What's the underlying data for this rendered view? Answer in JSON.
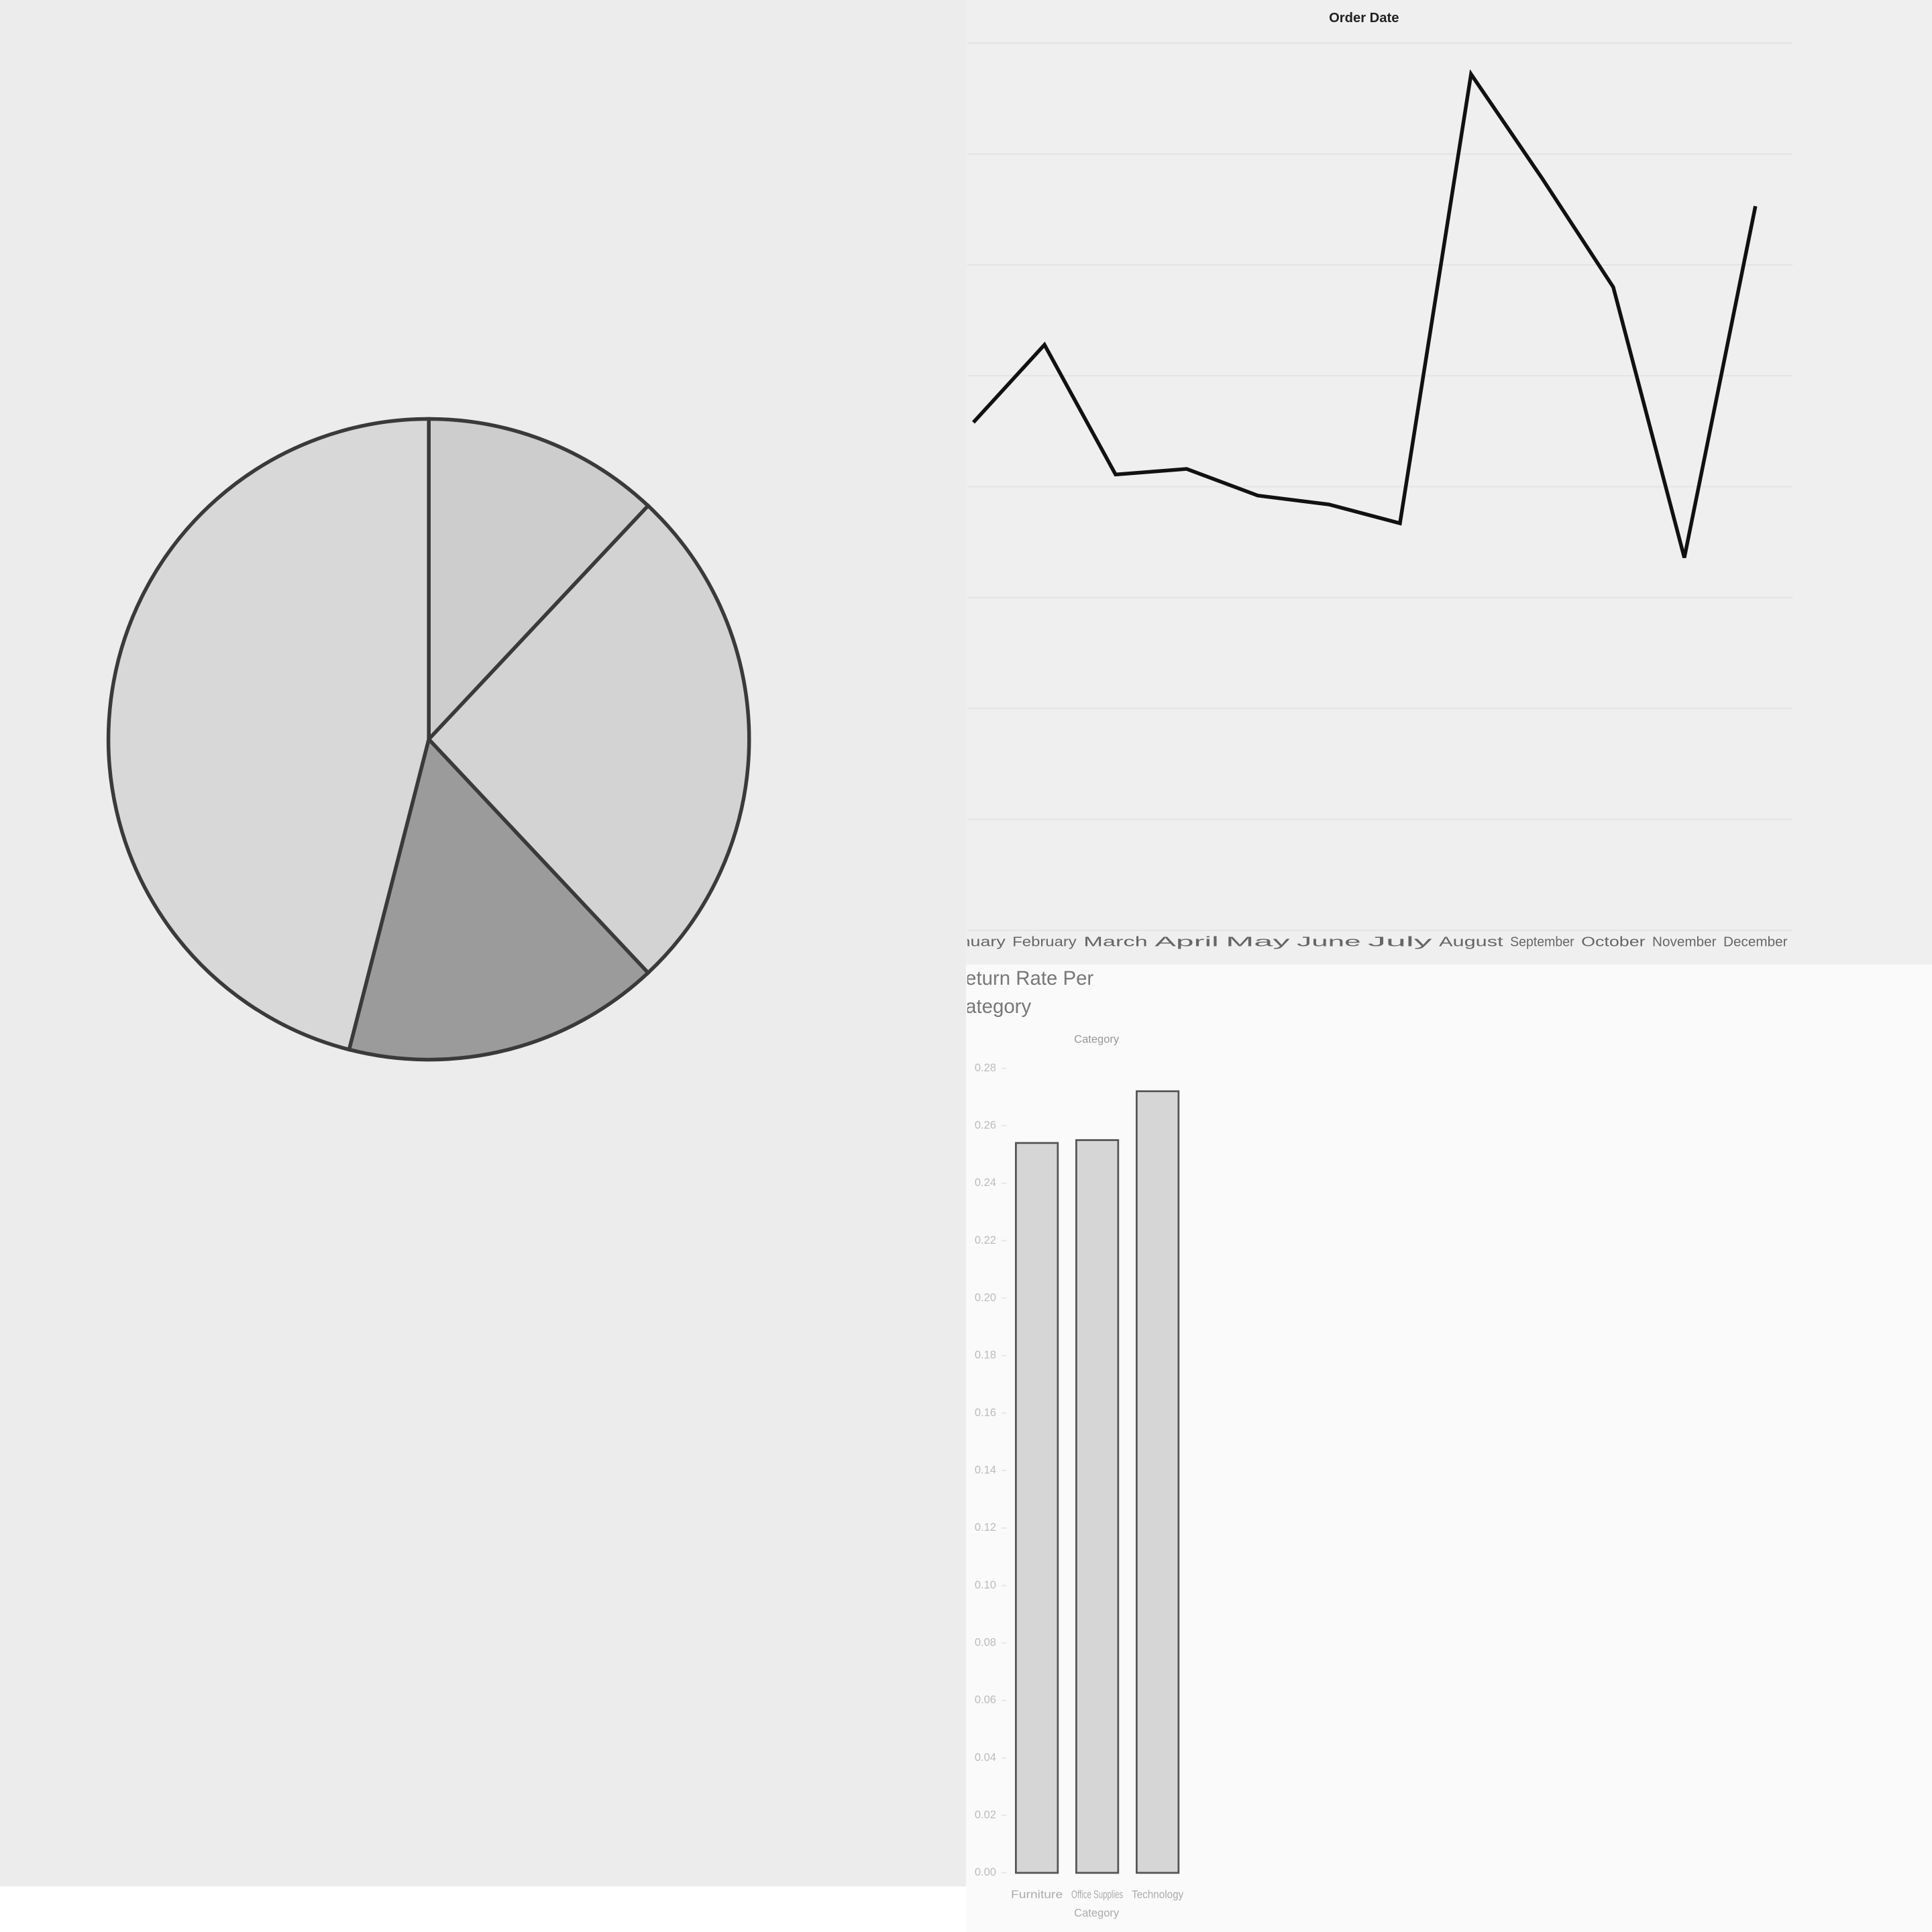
{
  "chart_data": [
    {
      "type": "pie",
      "values": [
        12,
        26,
        16,
        46
      ],
      "colors": [
        "#cdcdcd",
        "#d3d3d3",
        "#9b9b9b",
        "#d8d8d8"
      ]
    },
    {
      "type": "line",
      "title": "Order Date",
      "categories": [
        "January",
        "February",
        "March",
        "April",
        "May",
        "June",
        "July",
        "August",
        "September",
        "October",
        "November",
        "December"
      ],
      "values": [
        4.58,
        5.28,
        4.11,
        4.16,
        3.92,
        3.84,
        3.67,
        7.72,
        6.78,
        5.8,
        3.36,
        6.53
      ],
      "color": "#111111",
      "ylim": [
        0,
        8
      ],
      "yticks": [
        0,
        1,
        2,
        3,
        4,
        5,
        6,
        7,
        8
      ],
      "grid": true
    },
    {
      "type": "bar",
      "title": [
        "Return Rate Per",
        "Category"
      ],
      "header": "Category",
      "xlabel": "Category",
      "categories": [
        "Furniture",
        "Office Supplies",
        "Technology"
      ],
      "values": [
        0.254,
        0.255,
        0.272
      ],
      "color": "#d6d6d6",
      "ylim": [
        0,
        0.28
      ],
      "yticks": [
        {
          "value": 0,
          "label": "0.00"
        },
        {
          "value": 0.02,
          "label": "0.02"
        },
        {
          "value": 0.04,
          "label": "0.04"
        },
        {
          "value": 0.06,
          "label": "0.06"
        },
        {
          "value": 0.08,
          "label": "0.08"
        },
        {
          "value": 0.1,
          "label": "0.10"
        },
        {
          "value": 0.12,
          "label": "0.12"
        },
        {
          "value": 0.14,
          "label": "0.14"
        },
        {
          "value": 0.16,
          "label": "0.16"
        },
        {
          "value": 0.18,
          "label": "0.18"
        },
        {
          "value": 0.2,
          "label": "0.20"
        },
        {
          "value": 0.22,
          "label": "0.22"
        },
        {
          "value": 0.24,
          "label": "0.24"
        },
        {
          "value": 0.26,
          "label": "0.26"
        },
        {
          "value": 0.28,
          "label": "0.28"
        }
      ]
    }
  ]
}
